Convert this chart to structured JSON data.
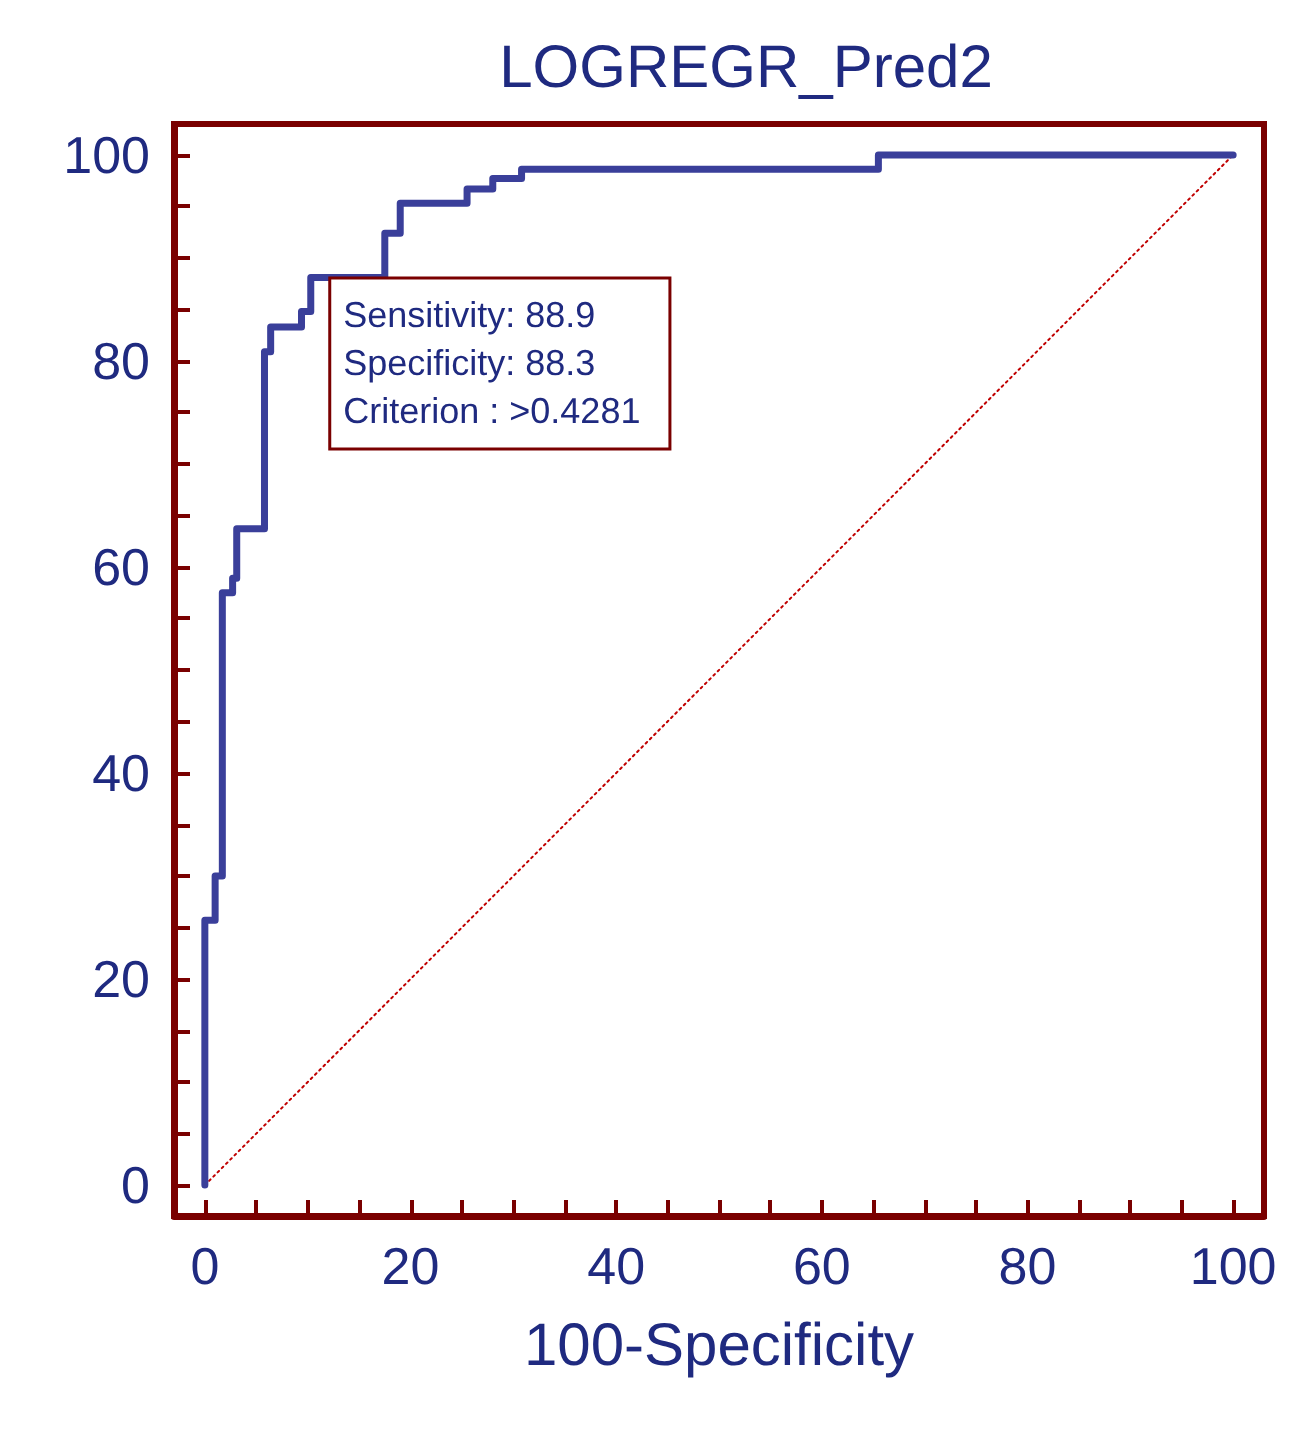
{
  "chart_data": {
    "type": "line",
    "title": "LOGREGR_Pred2",
    "xlabel": "100-Specificity",
    "annotations": [
      "Sensitivity: 88.9",
      "Specificity: 88.3",
      "Criterion : >0.4281"
    ],
    "xlim": [
      -3,
      103
    ],
    "ylim": [
      -3,
      103
    ],
    "xticks": [
      0,
      {
        "value": 5,
        "label": null
      },
      {
        "value": 10,
        "label": null
      },
      {
        "value": 15,
        "label": null
      },
      20,
      {
        "value": 25,
        "label": null
      },
      {
        "value": 30,
        "label": null
      },
      {
        "value": 35,
        "label": null
      },
      40,
      {
        "value": 45,
        "label": null
      },
      {
        "value": 50,
        "label": null
      },
      {
        "value": 55,
        "label": null
      },
      60,
      {
        "value": 65,
        "label": null
      },
      {
        "value": 70,
        "label": null
      },
      {
        "value": 75,
        "label": null
      },
      80,
      {
        "value": 85,
        "label": null
      },
      {
        "value": 90,
        "label": null
      },
      {
        "value": 95,
        "label": null
      },
      100
    ],
    "yticks": [
      0,
      {
        "value": 5,
        "label": null
      },
      {
        "value": 10,
        "label": null
      },
      {
        "value": 15,
        "label": null
      },
      20,
      {
        "value": 25,
        "label": null
      },
      {
        "value": 30,
        "label": null
      },
      {
        "value": 35,
        "label": null
      },
      40,
      {
        "value": 45,
        "label": null
      },
      {
        "value": 50,
        "label": null
      },
      {
        "value": 55,
        "label": null
      },
      60,
      {
        "value": 65,
        "label": null
      },
      {
        "value": 70,
        "label": null
      },
      {
        "value": 75,
        "label": null
      },
      80,
      {
        "value": 85,
        "label": null
      },
      {
        "value": 90,
        "label": null
      },
      {
        "value": 95,
        "label": null
      },
      100
    ],
    "grid": false,
    "marker": "none",
    "series": [
      {
        "color": "#3a3f9a",
        "line_style": "solid",
        "x": [
          0,
          0,
          1,
          1,
          1.7,
          1.7,
          2.7,
          2.7,
          3.1,
          3.1,
          5.8,
          5.8,
          6.4,
          6.4,
          9.4,
          9.4,
          10.3,
          10.3,
          17.5,
          17.5,
          19,
          19,
          25.5,
          25.5,
          28,
          28,
          30.8,
          30.8,
          65.5,
          65.5,
          100
        ],
        "values": [
          0,
          25.7,
          25.7,
          30,
          30,
          57.5,
          57.5,
          58.9,
          58.9,
          63.7,
          63.7,
          80.9,
          80.9,
          83.3,
          83.3,
          84.8,
          84.8,
          88.1,
          88.1,
          92.4,
          92.4,
          95.3,
          95.3,
          96.7,
          96.7,
          97.7,
          97.7,
          98.6,
          98.6,
          100,
          100
        ]
      },
      {
        "color": "#c00000",
        "line_style": "dotted",
        "x": [
          0,
          100
        ],
        "values": [
          0,
          100
        ]
      }
    ]
  }
}
